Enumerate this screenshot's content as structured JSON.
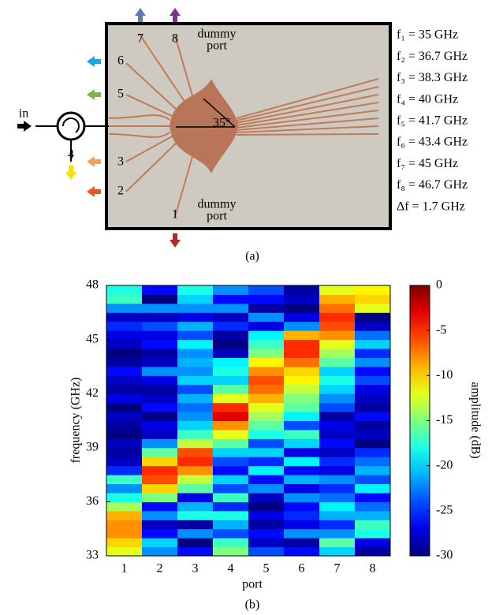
{
  "figure_a": {
    "caption": "(a)",
    "input_label": "in",
    "circulator_port": "4",
    "angle_label": "35°",
    "port_labels": [
      "1",
      "2",
      "3",
      "5",
      "6",
      "7",
      "8"
    ],
    "dummy_port_lines": [
      "dummy",
      "port"
    ],
    "frequencies": [
      "f₁ = 35 GHz",
      "f₂ = 36.7 GHz",
      "f₃ = 38.3 GHz",
      "f₄ = 40 GHz",
      "f₅ = 41.7 GHz",
      "f₆ = 43.4 GHz",
      "f₇ = 45 GHz",
      "f₈ = 46.7 GHz",
      "Δf = 1.7 GHz"
    ]
  },
  "chart_data": {
    "type": "heatmap",
    "caption": "(b)",
    "xlabel": "port",
    "ylabel": "frequency (GHz)",
    "colorbar_label": "amplitude (dB)",
    "categories": [
      "1",
      "2",
      "3",
      "4",
      "5",
      "6",
      "7",
      "8"
    ],
    "ylim": [
      33,
      48
    ],
    "yticks": [
      33,
      36,
      39,
      42,
      45,
      48
    ],
    "clim": [
      -30,
      0
    ],
    "cticks": [
      0,
      -5,
      -10,
      -15,
      -20,
      -25,
      -30
    ],
    "colormap": "jet",
    "values": [
      [
        -12,
        -22,
        -26,
        -15,
        -24,
        -26,
        -20,
        -29
      ],
      [
        -10,
        -20,
        -30,
        -17,
        -28,
        -29,
        -16,
        -27
      ],
      [
        -8,
        -26,
        -22,
        -24,
        -26,
        -22,
        -22,
        -18
      ],
      [
        -8,
        -28,
        -29,
        -21,
        -29,
        -27,
        -25,
        -17
      ],
      [
        -9,
        -22,
        -18,
        -18,
        -27,
        -25,
        -21,
        -21
      ],
      [
        -14,
        -26,
        -21,
        -25,
        -30,
        -26,
        -19,
        -23
      ],
      [
        -18,
        -15,
        -27,
        -17,
        -28,
        -22,
        -23,
        -26
      ],
      [
        -22,
        -10,
        -16,
        -24,
        -22,
        -27,
        -25,
        -19
      ],
      [
        -17,
        -6,
        -13,
        -20,
        -26,
        -21,
        -22,
        -24
      ],
      [
        -25,
        -5,
        -8,
        -26,
        -19,
        -26,
        -27,
        -21
      ],
      [
        -28,
        -10,
        -5,
        -24,
        -25,
        -19,
        -25,
        -23
      ],
      [
        -29,
        -16,
        -6,
        -20,
        -20,
        -27,
        -28,
        -25
      ],
      [
        -28,
        -22,
        -13,
        -16,
        -24,
        -20,
        -26,
        -30
      ],
      [
        -30,
        -28,
        -17,
        -12,
        -18,
        -17,
        -28,
        -28
      ],
      [
        -29,
        -27,
        -20,
        -8,
        -16,
        -24,
        -27,
        -29
      ],
      [
        -28,
        -30,
        -22,
        -3,
        -14,
        -19,
        -29,
        -26
      ],
      [
        -30,
        -26,
        -23,
        -5,
        -12,
        -16,
        -24,
        -29
      ],
      [
        -27,
        -28,
        -21,
        -12,
        -9,
        -15,
        -22,
        -28
      ],
      [
        -29,
        -29,
        -24,
        -16,
        -7,
        -13,
        -20,
        -27
      ],
      [
        -28,
        -27,
        -20,
        -20,
        -6,
        -11,
        -18,
        -24
      ],
      [
        -26,
        -22,
        -22,
        -18,
        -8,
        -10,
        -20,
        -26
      ],
      [
        -29,
        -28,
        -21,
        -19,
        -11,
        -7,
        -16,
        -22
      ],
      [
        -30,
        -29,
        -22,
        -28,
        -15,
        -5,
        -14,
        -25
      ],
      [
        -28,
        -26,
        -19,
        -30,
        -17,
        -5,
        -12,
        -20
      ],
      [
        -27,
        -27,
        -24,
        -29,
        -19,
        -9,
        -8,
        -23
      ],
      [
        -25,
        -24,
        -21,
        -25,
        -27,
        -22,
        -6,
        -28
      ],
      [
        -28,
        -28,
        -27,
        -28,
        -22,
        -27,
        -5,
        -30
      ],
      [
        -22,
        -22,
        -22,
        -22,
        -29,
        -30,
        -7,
        -12
      ],
      [
        -17,
        -30,
        -20,
        -26,
        -26,
        -28,
        -9,
        -10
      ],
      [
        -18,
        -26,
        -18,
        -22,
        -24,
        -29,
        -12,
        -11
      ]
    ]
  }
}
